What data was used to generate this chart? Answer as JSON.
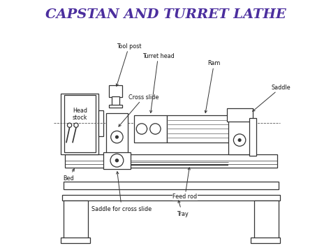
{
  "title": "CAPSTAN AND TURRET LATHE",
  "title_color": "#4B2E9E",
  "title_fontsize": 14,
  "bg_color": "#FFFFFF",
  "line_color": "#333333",
  "label_color": "#111111",
  "labels": {
    "tool_post": "Tool post",
    "head_stock": "Head\nstock",
    "turret_head": "Turret head",
    "ram": "Ram",
    "saddle": "Saddle",
    "cross_slide": "Cross slide",
    "bed": "Bed",
    "feed_rod": "Feed rod",
    "saddle_cross": "Saddle for cross slide",
    "tray": "Tray"
  },
  "figsize": [
    4.74,
    3.55
  ],
  "dpi": 100
}
